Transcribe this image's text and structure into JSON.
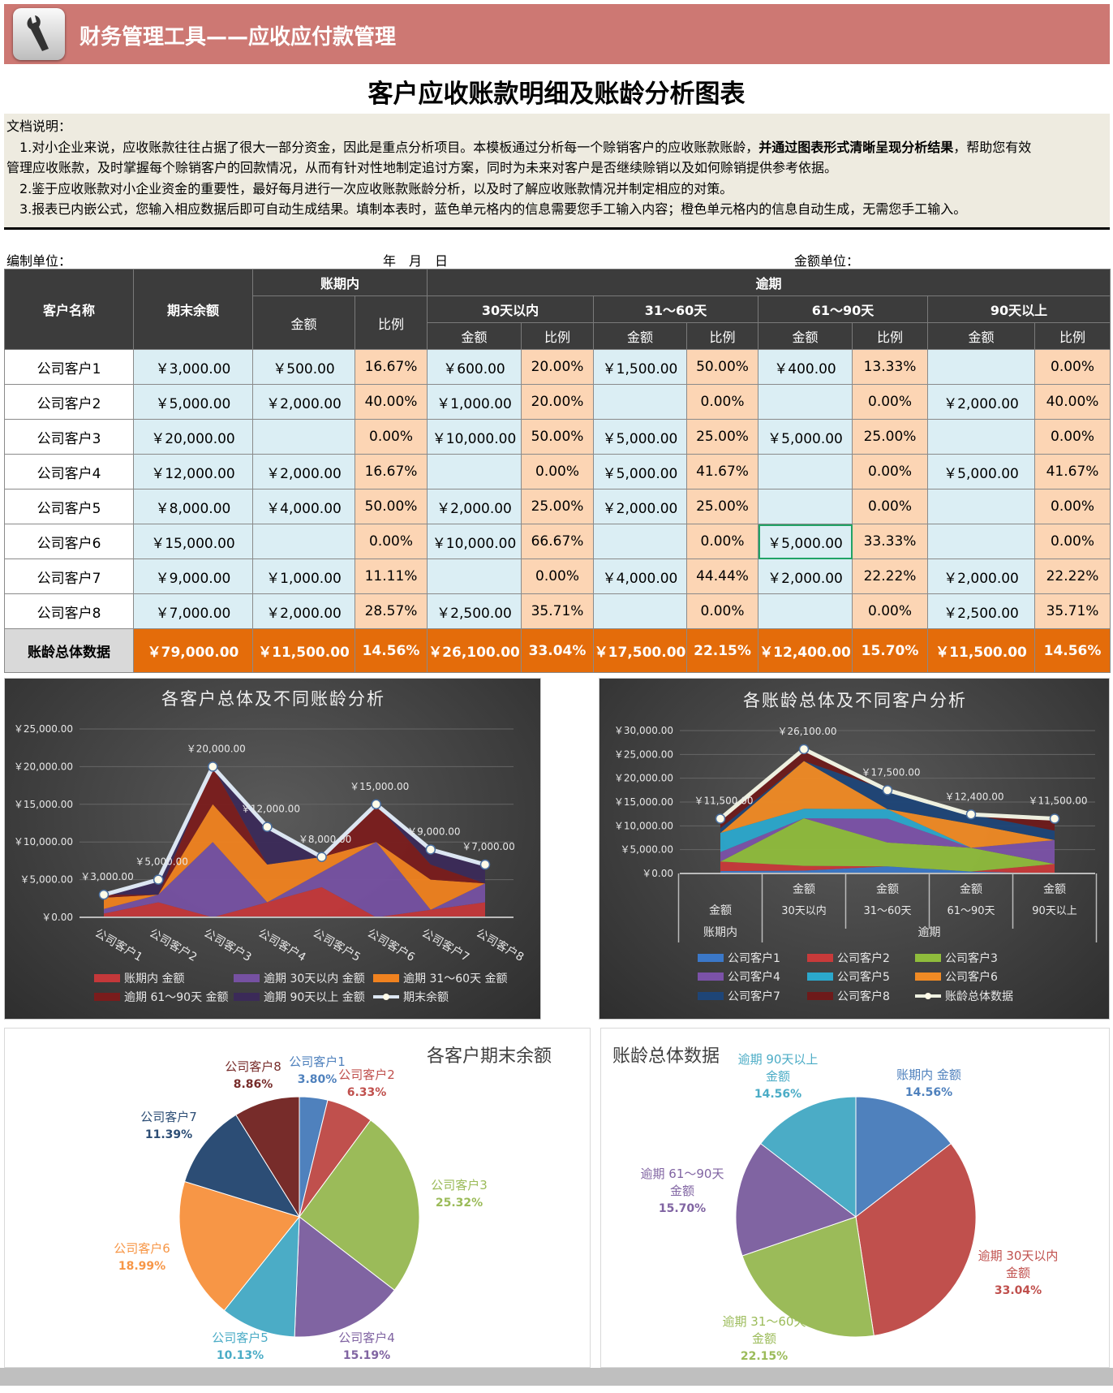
{
  "header": {
    "title": "财务管理工具——应收应付款管理",
    "icon": "wrench-icon",
    "color": "#cd7873"
  },
  "main_title": "客户应收账款明细及账龄分析图表",
  "doc": {
    "heading": "文档说明：",
    "line1a": "　1.对小企业来说，应收账款往往占据了很大一部分资金，因此是重点分析项目。本模板通过分析每一个赊销客户的应收账款账龄，",
    "line1b": "并通过图表形式清晰呈现分析结果",
    "line1c": "，帮助您有效",
    "line2": "管理应收账款，及时掌握每个赊销客户的回款情况，从而有针对性地制定追讨方案，同时为未来对客户是否继续赊销以及如何赊销提供参考依据。",
    "line3": "　2.鉴于应收账款对小企业资金的重要性，最好每月进行一次应收账款账龄分析，以及时了解应收账款情况并制定相应的对策。",
    "line4": "　3.报表已内嵌公式，您输入相应数据后即可自动生成结果。填制本表时，蓝色单元格内的信息需要您手工输入内容；橙色单元格内的信息自动生成，无需您手工输入。"
  },
  "meta": {
    "unit": "编制单位：",
    "date": "年　月　日",
    "currency": "金额单位："
  },
  "table": {
    "h_name": "客户名称",
    "h_balance": "期末余额",
    "h_inperiod": "账期内",
    "h_overdue": "逾期",
    "h_b30": "30天以内",
    "h_b60": "31～60天",
    "h_b90": "61～90天",
    "h_b90p": "90天以上",
    "h_amt": "金额",
    "h_pct": "比例",
    "rows": [
      {
        "name": "公司客户1",
        "bal": "￥3,000.00",
        "c": [
          [
            "￥500.00",
            "16.67%"
          ],
          [
            "￥600.00",
            "20.00%"
          ],
          [
            "￥1,500.00",
            "50.00%"
          ],
          [
            "￥400.00",
            "13.33%"
          ],
          [
            "",
            "0.00%"
          ]
        ]
      },
      {
        "name": "公司客户2",
        "bal": "￥5,000.00",
        "c": [
          [
            "￥2,000.00",
            "40.00%"
          ],
          [
            "￥1,000.00",
            "20.00%"
          ],
          [
            "",
            "0.00%"
          ],
          [
            "",
            "0.00%"
          ],
          [
            "￥2,000.00",
            "40.00%"
          ]
        ]
      },
      {
        "name": "公司客户3",
        "bal": "￥20,000.00",
        "c": [
          [
            "",
            "0.00%"
          ],
          [
            "￥10,000.00",
            "50.00%"
          ],
          [
            "￥5,000.00",
            "25.00%"
          ],
          [
            "￥5,000.00",
            "25.00%"
          ],
          [
            "",
            "0.00%"
          ]
        ]
      },
      {
        "name": "公司客户4",
        "bal": "￥12,000.00",
        "c": [
          [
            "￥2,000.00",
            "16.67%"
          ],
          [
            "",
            "0.00%"
          ],
          [
            "￥5,000.00",
            "41.67%"
          ],
          [
            "",
            "0.00%"
          ],
          [
            "￥5,000.00",
            "41.67%"
          ]
        ]
      },
      {
        "name": "公司客户5",
        "bal": "￥8,000.00",
        "c": [
          [
            "￥4,000.00",
            "50.00%"
          ],
          [
            "￥2,000.00",
            "25.00%"
          ],
          [
            "￥2,000.00",
            "25.00%"
          ],
          [
            "",
            "0.00%"
          ],
          [
            "",
            "0.00%"
          ]
        ]
      },
      {
        "name": "公司客户6",
        "bal": "￥15,000.00",
        "c": [
          [
            "",
            "0.00%"
          ],
          [
            "￥10,000.00",
            "66.67%"
          ],
          [
            "",
            "0.00%"
          ],
          [
            "￥5,000.00",
            "33.33%"
          ],
          [
            "",
            "0.00%"
          ]
        ]
      },
      {
        "name": "公司客户7",
        "bal": "￥9,000.00",
        "c": [
          [
            "￥1,000.00",
            "11.11%"
          ],
          [
            "",
            "0.00%"
          ],
          [
            "￥4,000.00",
            "44.44%"
          ],
          [
            "￥2,000.00",
            "22.22%"
          ],
          [
            "￥2,000.00",
            "22.22%"
          ]
        ]
      },
      {
        "name": "公司客户8",
        "bal": "￥7,000.00",
        "c": [
          [
            "￥2,000.00",
            "28.57%"
          ],
          [
            "￥2,500.00",
            "35.71%"
          ],
          [
            "",
            "0.00%"
          ],
          [
            "",
            "0.00%"
          ],
          [
            "￥2,500.00",
            "35.71%"
          ]
        ]
      }
    ],
    "total": {
      "name": "账龄总体数据",
      "bal": "￥79,000.00",
      "c": [
        [
          "￥11,500.00",
          "14.56%"
        ],
        [
          "￥26,100.00",
          "33.04%"
        ],
        [
          "￥17,500.00",
          "22.15%"
        ],
        [
          "￥12,400.00",
          "15.70%"
        ],
        [
          "￥11,500.00",
          "14.56%"
        ]
      ]
    }
  },
  "chart_data": [
    {
      "type": "area",
      "stacked": true,
      "title": "各客户总体及不同账龄分析",
      "categories": [
        "公司客户1",
        "公司客户2",
        "公司客户3",
        "公司客户4",
        "公司客户5",
        "公司客户6",
        "公司客户7",
        "公司客户8"
      ],
      "ylim": [
        0,
        25000
      ],
      "yticks": [
        "￥0.00",
        "￥5,000.00",
        "￥10,000.00",
        "￥15,000.00",
        "￥20,000.00",
        "￥25,000.00"
      ],
      "grid": true,
      "legend": "bottom",
      "series": [
        {
          "name": "账期内 金额",
          "color": "#c4383a",
          "values": [
            500,
            2000,
            0,
            2000,
            4000,
            0,
            1000,
            2000
          ]
        },
        {
          "name": "逾期 30天以内 金额",
          "color": "#7651a2",
          "values": [
            600,
            1000,
            10000,
            0,
            2000,
            10000,
            0,
            2500
          ]
        },
        {
          "name": "逾期 31～60天 金额",
          "color": "#f0821f",
          "values": [
            1500,
            0,
            5000,
            5000,
            2000,
            0,
            4000,
            0
          ]
        },
        {
          "name": "逾期 61～90天 金额",
          "color": "#7a1c1c",
          "values": [
            400,
            0,
            5000,
            0,
            0,
            5000,
            2000,
            0
          ]
        },
        {
          "name": "逾期 90天以上 金额",
          "color": "#3b2a58",
          "values": [
            0,
            2000,
            0,
            5000,
            0,
            0,
            2000,
            2500
          ]
        }
      ],
      "line": {
        "name": "期末余额",
        "color": "#dce6f2",
        "values": [
          3000,
          5000,
          20000,
          12000,
          8000,
          15000,
          9000,
          7000
        ],
        "labels": [
          "￥3,000.00",
          "￥5,000.00",
          "￥20,000.00",
          "￥12,000.00",
          "￥8,000.00",
          "￥15,000.00",
          "￥9,000.00",
          "￥7,000.00"
        ]
      }
    },
    {
      "type": "area",
      "stacked": true,
      "title": "各账龄总体及不同客户分析",
      "categories": [
        {
          "top": "金额",
          "sub": "",
          "group": "账期内"
        },
        {
          "top": "金额",
          "sub": "30天以内",
          "group": "逾期"
        },
        {
          "top": "金额",
          "sub": "31～60天",
          "group": "逾期"
        },
        {
          "top": "金额",
          "sub": "61～90天",
          "group": "逾期"
        },
        {
          "top": "金额",
          "sub": "90天以上",
          "group": "逾期"
        }
      ],
      "groups": [
        "账期内",
        "逾期"
      ],
      "ylim": [
        0,
        30000
      ],
      "yticks": [
        "￥0.00",
        "￥5,000.00",
        "￥10,000.00",
        "￥15,000.00",
        "￥20,000.00",
        "￥25,000.00",
        "￥30,000.00"
      ],
      "grid": true,
      "legend": "bottom",
      "series": [
        {
          "name": "公司客户1",
          "color": "#3b78c8",
          "values": [
            500,
            600,
            1500,
            400,
            0
          ]
        },
        {
          "name": "公司客户2",
          "color": "#c83a3a",
          "values": [
            2000,
            1000,
            0,
            0,
            2000
          ]
        },
        {
          "name": "公司客户3",
          "color": "#8fbc3c",
          "values": [
            0,
            10000,
            5000,
            5000,
            0
          ]
        },
        {
          "name": "公司客户4",
          "color": "#7b52a8",
          "values": [
            2000,
            0,
            5000,
            0,
            5000
          ]
        },
        {
          "name": "公司客户5",
          "color": "#2ba8cc",
          "values": [
            4000,
            2000,
            2000,
            0,
            0
          ]
        },
        {
          "name": "公司客户6",
          "color": "#f08a24",
          "values": [
            0,
            10000,
            0,
            5000,
            0
          ]
        },
        {
          "name": "公司客户7",
          "color": "#1e4577",
          "values": [
            1000,
            0,
            4000,
            2000,
            2000
          ]
        },
        {
          "name": "公司客户8",
          "color": "#6e1a1a",
          "values": [
            2000,
            2500,
            0,
            0,
            2500
          ]
        }
      ],
      "line": {
        "name": "账龄总体数据",
        "color": "#eef0e0",
        "values": [
          11500,
          26100,
          17500,
          12400,
          11500
        ],
        "labels": [
          "￥11,500.00",
          "￥26,100.00",
          "￥17,500.00",
          "￥12,400.00",
          "￥11,500.00"
        ]
      }
    },
    {
      "type": "pie",
      "title": "各客户期末余额",
      "slices": [
        {
          "name": "公司客户1",
          "pct": "3.80%",
          "value": 3.8,
          "color": "#4f81bd"
        },
        {
          "name": "公司客户2",
          "pct": "6.33%",
          "value": 6.33,
          "color": "#c0504d"
        },
        {
          "name": "公司客户3",
          "pct": "25.32%",
          "value": 25.32,
          "color": "#9bbb59"
        },
        {
          "name": "公司客户4",
          "pct": "15.19%",
          "value": 15.19,
          "color": "#8064a2"
        },
        {
          "name": "公司客户5",
          "pct": "10.13%",
          "value": 10.13,
          "color": "#4bacc6"
        },
        {
          "name": "公司客户6",
          "pct": "18.99%",
          "value": 18.99,
          "color": "#f79646"
        },
        {
          "name": "公司客户7",
          "pct": "11.39%",
          "value": 11.39,
          "color": "#2c4d75"
        },
        {
          "name": "公司客户8",
          "pct": "8.86%",
          "value": 8.86,
          "color": "#772c2a"
        }
      ]
    },
    {
      "type": "pie",
      "title": "账龄总体数据",
      "slices": [
        {
          "name": "账期内 金额",
          "pct": "14.56%",
          "value": 14.56,
          "color": "#4f81bd"
        },
        {
          "name": "逾期 30天以内",
          "name2": "金额",
          "pct": "33.04%",
          "value": 33.04,
          "color": "#c0504d"
        },
        {
          "name": "逾期 31～60天",
          "name2": "金额",
          "pct": "22.15%",
          "value": 22.15,
          "color": "#9bbb59"
        },
        {
          "name": "逾期 61～90天",
          "name2": "金额",
          "pct": "15.70%",
          "value": 15.7,
          "color": "#8064a2"
        },
        {
          "name": "逾期 90天以上",
          "name2": "金额",
          "pct": "14.56%",
          "value": 14.56,
          "color": "#4bacc6"
        }
      ]
    }
  ]
}
